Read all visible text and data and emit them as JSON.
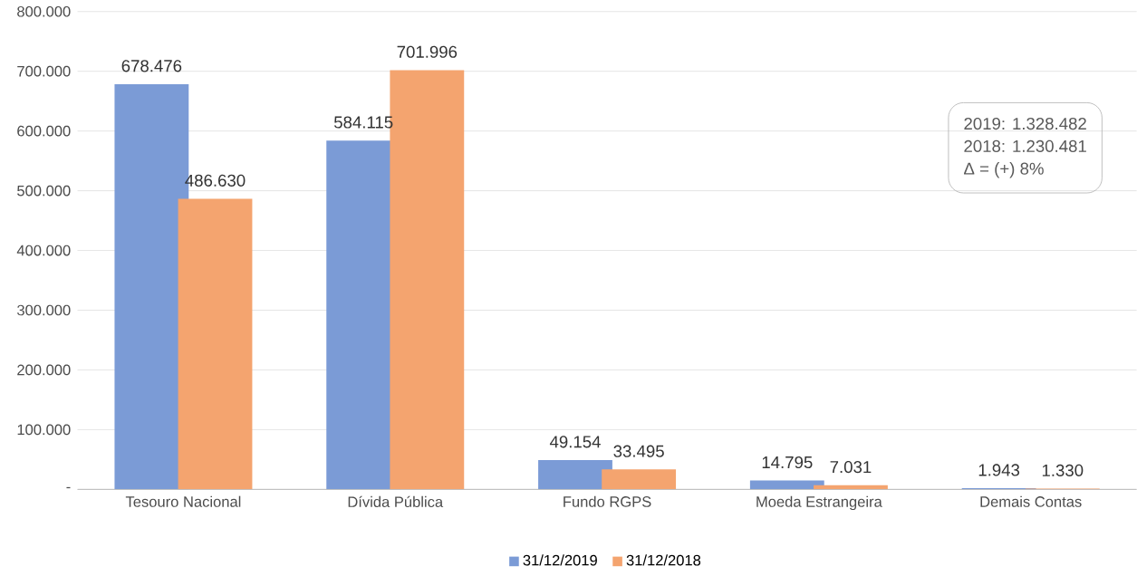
{
  "chart_data": {
    "type": "bar",
    "categories": [
      "Tesouro Nacional",
      "Dívida Pública",
      "Fundo RGPS",
      "Moeda Estrangeira",
      "Demais Contas"
    ],
    "series": [
      {
        "name": "31/12/2019",
        "color": "#7b9bd6",
        "values": [
          678476,
          584115,
          49154,
          14795,
          1943
        ],
        "value_labels": [
          "678.476",
          "584.115",
          "49.154",
          "14.795",
          "1.943"
        ]
      },
      {
        "name": "31/12/2018",
        "color": "#f4a46f",
        "values": [
          486630,
          701996,
          33495,
          7031,
          1330
        ],
        "value_labels": [
          "486.630",
          "701.996",
          "33.495",
          "7.031",
          "1.330"
        ]
      }
    ],
    "ylim": [
      0,
      800000
    ],
    "yticks": [
      {
        "value": 0,
        "label": "-"
      },
      {
        "value": 100000,
        "label": "100.000"
      },
      {
        "value": 200000,
        "label": "200.000"
      },
      {
        "value": 300000,
        "label": "300.000"
      },
      {
        "value": 400000,
        "label": "400.000"
      },
      {
        "value": 500000,
        "label": "500.000"
      },
      {
        "value": 600000,
        "label": "600.000"
      },
      {
        "value": 700000,
        "label": "700.000"
      },
      {
        "value": 800000,
        "label": "800.000"
      }
    ],
    "annotations": [
      "2019: 1.328.482",
      "2018: 1.230.481",
      "Δ = (+) 8%"
    ],
    "grid": "y",
    "legend": "bottom"
  }
}
